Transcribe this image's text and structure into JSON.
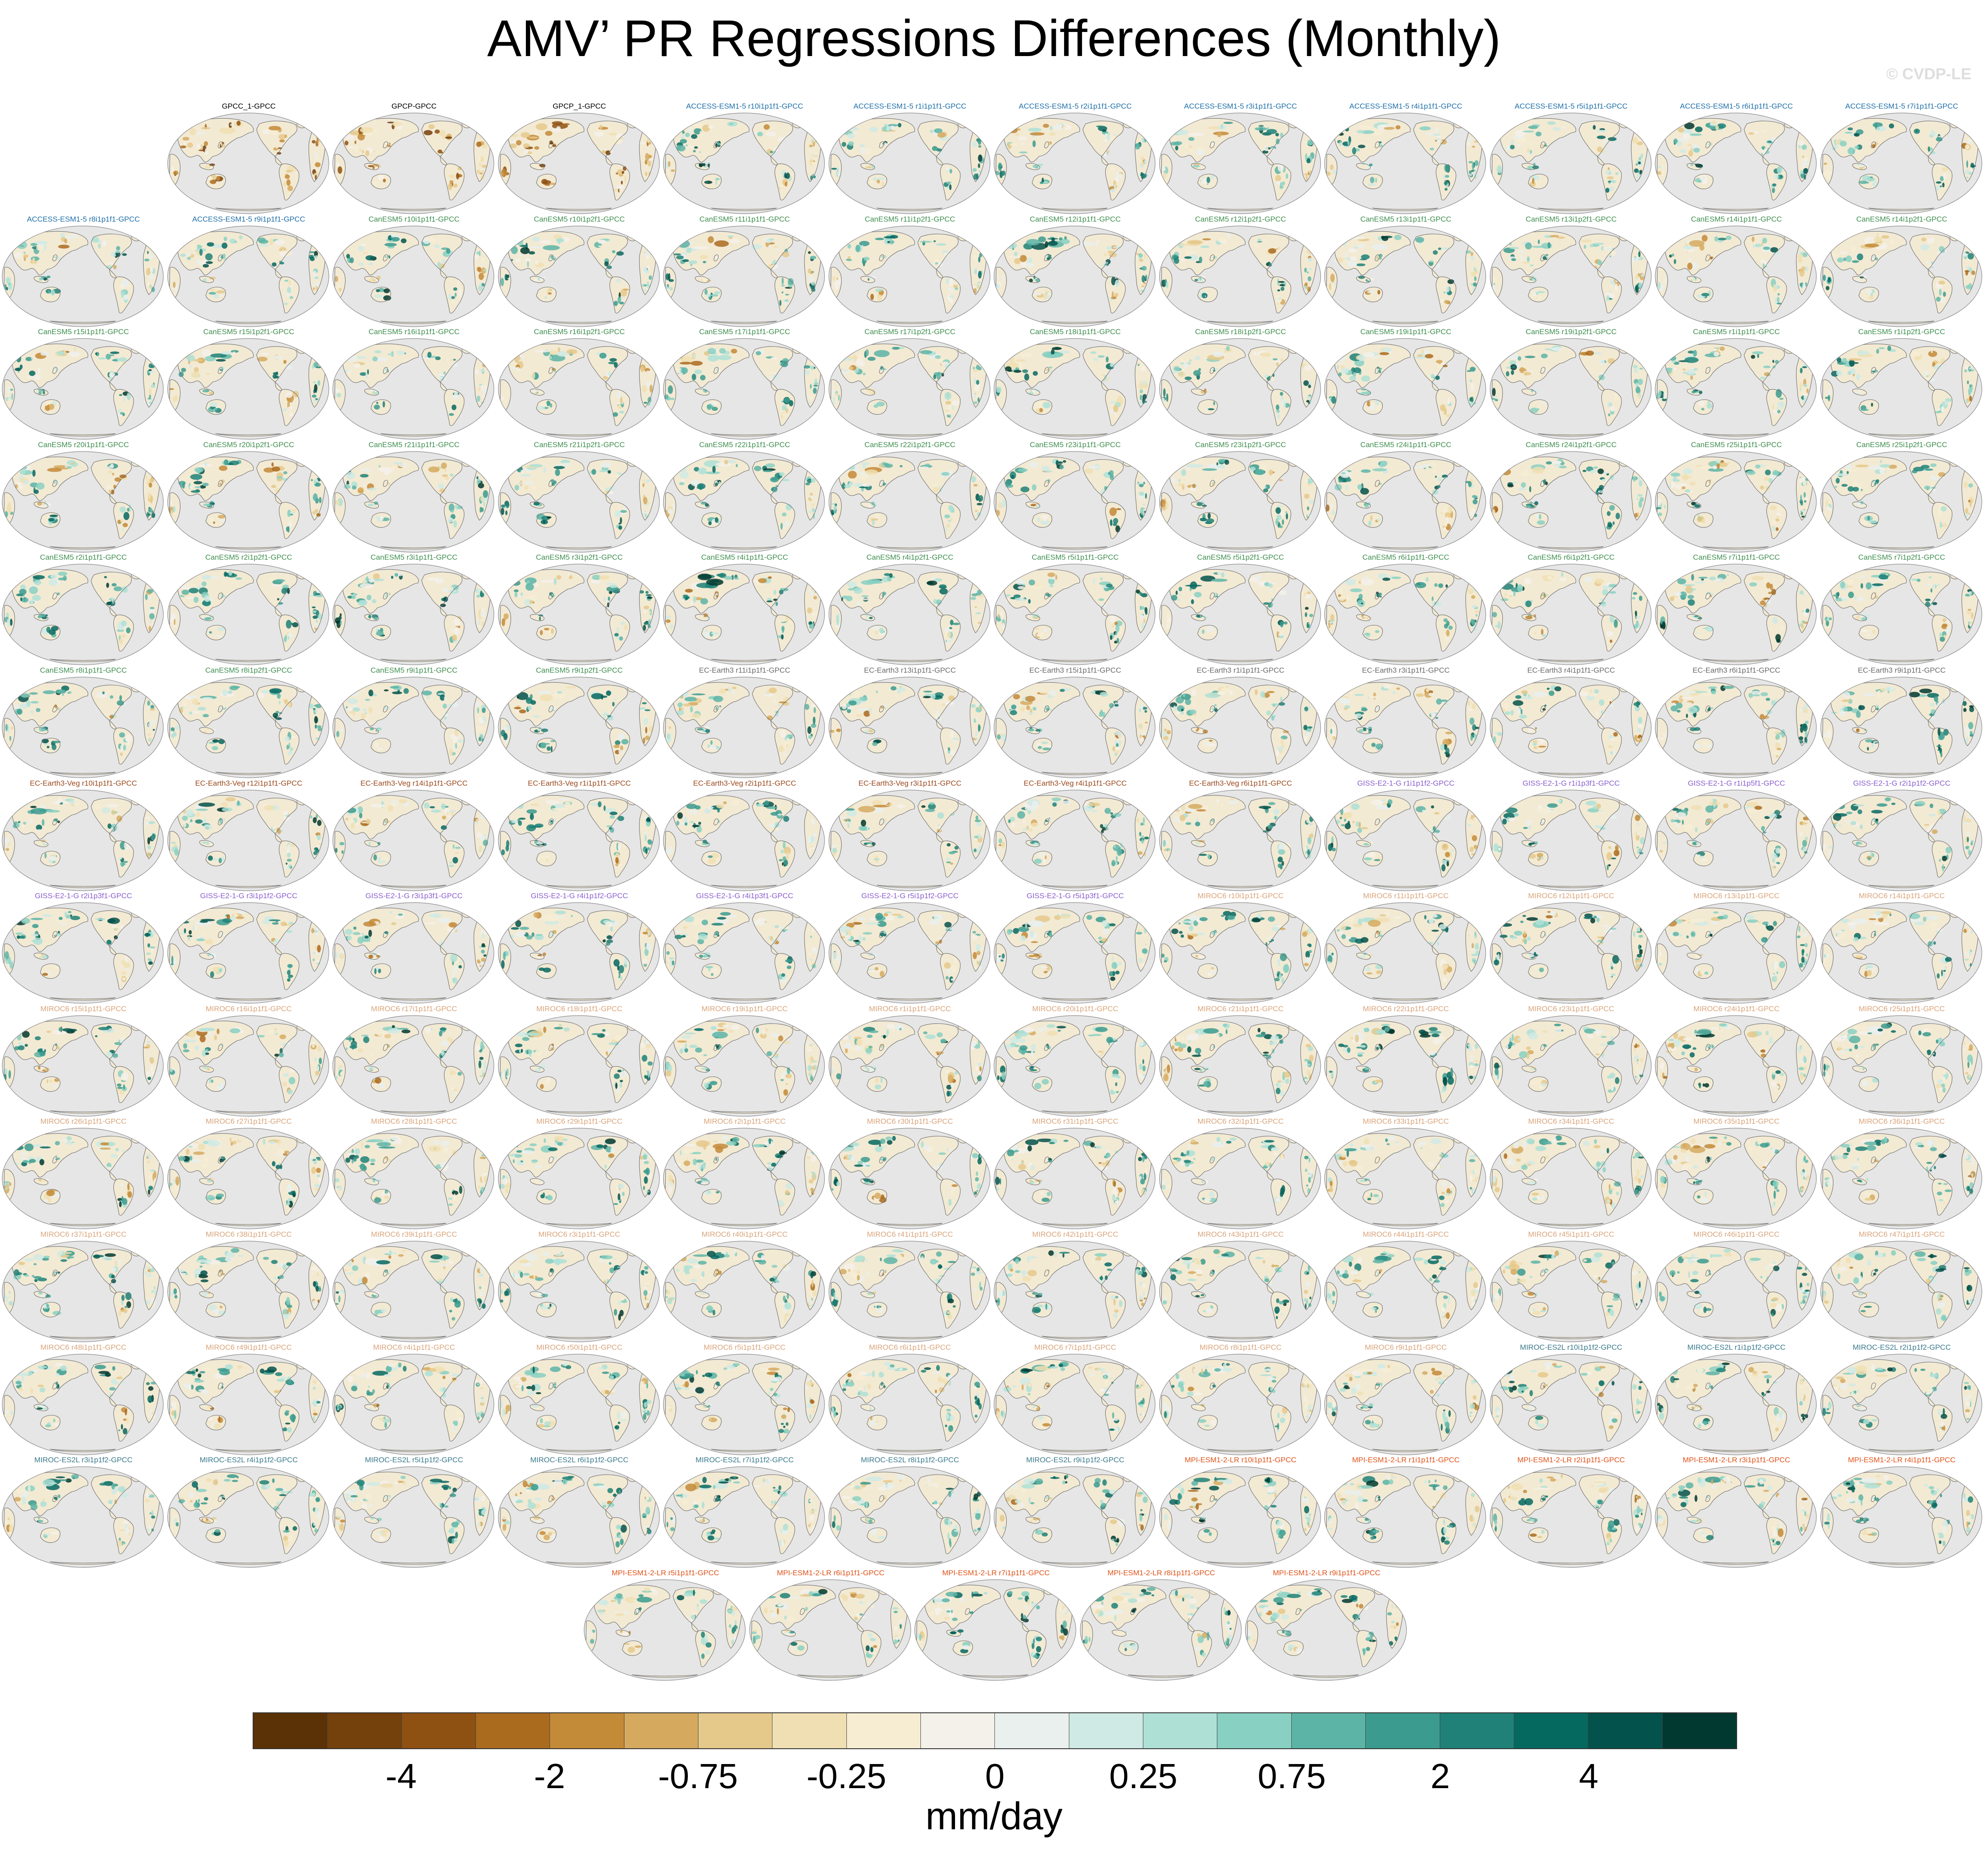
{
  "title": "AMV’ PR Regressions Differences (Monthly)",
  "watermark": "© CVDP-LE",
  "colorbar": {
    "units": "mm/day",
    "tick_labels": [
      "-4",
      "-2",
      "-0.75",
      "-0.25",
      "0",
      "0.25",
      "0.75",
      "2",
      "4"
    ],
    "colors": [
      "#5a3206",
      "#74400c",
      "#8e5112",
      "#aa6b1f",
      "#c38a37",
      "#d5aa5f",
      "#e5c98b",
      "#f0dfb2",
      "#f6edd3",
      "#f4f1ea",
      "#e9f0ee",
      "#cfeae4",
      "#aee0d6",
      "#88d0c2",
      "#5cb4a6",
      "#3a9b8e",
      "#1f8177",
      "#066960",
      "#03524b",
      "#01382f"
    ]
  },
  "panel_rows": [
    [
      "GPCC_1-GPCC",
      "GPCP-GPCC",
      "GPCP_1-GPCC",
      "ACCESS-ESM1-5 r10i1p1f1-GPCC",
      "ACCESS-ESM1-5 r1i1p1f1-GPCC",
      "ACCESS-ESM1-5 r2i1p1f1-GPCC",
      "ACCESS-ESM1-5 r3i1p1f1-GPCC",
      "ACCESS-ESM1-5 r4i1p1f1-GPCC",
      "ACCESS-ESM1-5 r5i1p1f1-GPCC",
      "ACCESS-ESM1-5 r6i1p1f1-GPCC",
      "ACCESS-ESM1-5 r7i1p1f1-GPCC"
    ],
    [
      "ACCESS-ESM1-5 r8i1p1f1-GPCC",
      "ACCESS-ESM1-5 r9i1p1f1-GPCC",
      "CanESM5 r10i1p1f1-GPCC",
      "CanESM5 r10i1p2f1-GPCC",
      "CanESM5 r11i1p1f1-GPCC",
      "CanESM5 r11i1p2f1-GPCC",
      "CanESM5 r12i1p1f1-GPCC",
      "CanESM5 r12i1p2f1-GPCC",
      "CanESM5 r13i1p1f1-GPCC",
      "CanESM5 r13i1p2f1-GPCC",
      "CanESM5 r14i1p1f1-GPCC",
      "CanESM5 r14i1p2f1-GPCC"
    ],
    [
      "CanESM5 r15i1p1f1-GPCC",
      "CanESM5 r15i1p2f1-GPCC",
      "CanESM5 r16i1p1f1-GPCC",
      "CanESM5 r16i1p2f1-GPCC",
      "CanESM5 r17i1p1f1-GPCC",
      "CanESM5 r17i1p2f1-GPCC",
      "CanESM5 r18i1p1f1-GPCC",
      "CanESM5 r18i1p2f1-GPCC",
      "CanESM5 r19i1p1f1-GPCC",
      "CanESM5 r19i1p2f1-GPCC",
      "CanESM5 r1i1p1f1-GPCC",
      "CanESM5 r1i1p2f1-GPCC"
    ],
    [
      "CanESM5 r20i1p1f1-GPCC",
      "CanESM5 r20i1p2f1-GPCC",
      "CanESM5 r21i1p1f1-GPCC",
      "CanESM5 r21i1p2f1-GPCC",
      "CanESM5 r22i1p1f1-GPCC",
      "CanESM5 r22i1p2f1-GPCC",
      "CanESM5 r23i1p1f1-GPCC",
      "CanESM5 r23i1p2f1-GPCC",
      "CanESM5 r24i1p1f1-GPCC",
      "CanESM5 r24i1p2f1-GPCC",
      "CanESM5 r25i1p1f1-GPCC",
      "CanESM5 r25i1p2f1-GPCC"
    ],
    [
      "CanESM5 r2i1p1f1-GPCC",
      "CanESM5 r2i1p2f1-GPCC",
      "CanESM5 r3i1p1f1-GPCC",
      "CanESM5 r3i1p2f1-GPCC",
      "CanESM5 r4i1p1f1-GPCC",
      "CanESM5 r4i1p2f1-GPCC",
      "CanESM5 r5i1p1f1-GPCC",
      "CanESM5 r5i1p2f1-GPCC",
      "CanESM5 r6i1p1f1-GPCC",
      "CanESM5 r6i1p2f1-GPCC",
      "CanESM5 r7i1p1f1-GPCC",
      "CanESM5 r7i1p2f1-GPCC"
    ],
    [
      "CanESM5 r8i1p1f1-GPCC",
      "CanESM5 r8i1p2f1-GPCC",
      "CanESM5 r9i1p1f1-GPCC",
      "CanESM5 r9i1p2f1-GPCC",
      "EC-Earth3 r11i1p1f1-GPCC",
      "EC-Earth3 r13i1p1f1-GPCC",
      "EC-Earth3 r15i1p1f1-GPCC",
      "EC-Earth3 r1i1p1f1-GPCC",
      "EC-Earth3 r3i1p1f1-GPCC",
      "EC-Earth3 r4i1p1f1-GPCC",
      "EC-Earth3 r6i1p1f1-GPCC",
      "EC-Earth3 r9i1p1f1-GPCC"
    ],
    [
      "EC-Earth3-Veg r10i1p1f1-GPCC",
      "EC-Earth3-Veg r12i1p1f1-GPCC",
      "EC-Earth3-Veg r14i1p1f1-GPCC",
      "EC-Earth3-Veg r1i1p1f1-GPCC",
      "EC-Earth3-Veg r2i1p1f1-GPCC",
      "EC-Earth3-Veg r3i1p1f1-GPCC",
      "EC-Earth3-Veg r4i1p1f1-GPCC",
      "EC-Earth3-Veg r6i1p1f1-GPCC",
      "GISS-E2-1-G r1i1p1f2-GPCC",
      "GISS-E2-1-G r1i1p3f1-GPCC",
      "GISS-E2-1-G r1i1p5f1-GPCC",
      "GISS-E2-1-G r2i1p1f2-GPCC"
    ],
    [
      "GISS-E2-1-G r2i1p3f1-GPCC",
      "GISS-E2-1-G r3i1p1f2-GPCC",
      "GISS-E2-1-G r3i1p3f1-GPCC",
      "GISS-E2-1-G r4i1p1f2-GPCC",
      "GISS-E2-1-G r4i1p3f1-GPCC",
      "GISS-E2-1-G r5i1p1f2-GPCC",
      "GISS-E2-1-G r5i1p3f1-GPCC",
      "MIROC6 r10i1p1f1-GPCC",
      "MIROC6 r11i1p1f1-GPCC",
      "MIROC6 r12i1p1f1-GPCC",
      "MIROC6 r13i1p1f1-GPCC",
      "MIROC6 r14i1p1f1-GPCC"
    ],
    [
      "MIROC6 r15i1p1f1-GPCC",
      "MIROC6 r16i1p1f1-GPCC",
      "MIROC6 r17i1p1f1-GPCC",
      "MIROC6 r18i1p1f1-GPCC",
      "MIROC6 r19i1p1f1-GPCC",
      "MIROC6 r1i1p1f1-GPCC",
      "MIROC6 r20i1p1f1-GPCC",
      "MIROC6 r21i1p1f1-GPCC",
      "MIROC6 r22i1p1f1-GPCC",
      "MIROC6 r23i1p1f1-GPCC",
      "MIROC6 r24i1p1f1-GPCC",
      "MIROC6 r25i1p1f1-GPCC"
    ],
    [
      "MIROC6 r26i1p1f1-GPCC",
      "MIROC6 r27i1p1f1-GPCC",
      "MIROC6 r28i1p1f1-GPCC",
      "MIROC6 r29i1p1f1-GPCC",
      "MIROC6 r2i1p1f1-GPCC",
      "MIROC6 r30i1p1f1-GPCC",
      "MIROC6 r31i1p1f1-GPCC",
      "MIROC6 r32i1p1f1-GPCC",
      "MIROC6 r33i1p1f1-GPCC",
      "MIROC6 r34i1p1f1-GPCC",
      "MIROC6 r35i1p1f1-GPCC",
      "MIROC6 r36i1p1f1-GPCC"
    ],
    [
      "MIROC6 r37i1p1f1-GPCC",
      "MIROC6 r38i1p1f1-GPCC",
      "MIROC6 r39i1p1f1-GPCC",
      "MIROC6 r3i1p1f1-GPCC",
      "MIROC6 r40i1p1f1-GPCC",
      "MIROC6 r41i1p1f1-GPCC",
      "MIROC6 r42i1p1f1-GPCC",
      "MIROC6 r43i1p1f1-GPCC",
      "MIROC6 r44i1p1f1-GPCC",
      "MIROC6 r45i1p1f1-GPCC",
      "MIROC6 r46i1p1f1-GPCC",
      "MIROC6 r47i1p1f1-GPCC"
    ],
    [
      "MIROC6 r48i1p1f1-GPCC",
      "MIROC6 r49i1p1f1-GPCC",
      "MIROC6 r4i1p1f1-GPCC",
      "MIROC6 r50i1p1f1-GPCC",
      "MIROC6 r5i1p1f1-GPCC",
      "MIROC6 r6i1p1f1-GPCC",
      "MIROC6 r7i1p1f1-GPCC",
      "MIROC6 r8i1p1f1-GPCC",
      "MIROC6 r9i1p1f1-GPCC",
      "MIROC-ES2L r10i1p1f2-GPCC",
      "MIROC-ES2L r1i1p1f2-GPCC",
      "MIROC-ES2L r2i1p1f2-GPCC"
    ],
    [
      "MIROC-ES2L r3i1p1f2-GPCC",
      "MIROC-ES2L r4i1p1f2-GPCC",
      "MIROC-ES2L r5i1p1f2-GPCC",
      "MIROC-ES2L r6i1p1f2-GPCC",
      "MIROC-ES2L r7i1p1f2-GPCC",
      "MIROC-ES2L r8i1p1f2-GPCC",
      "MIROC-ES2L r9i1p1f2-GPCC",
      "MPI-ESM1-2-LR r10i1p1f1-GPCC",
      "MPI-ESM1-2-LR r1i1p1f1-GPCC",
      "MPI-ESM1-2-LR r2i1p1f1-GPCC",
      "MPI-ESM1-2-LR r3i1p1f1-GPCC",
      "MPI-ESM1-2-LR r4i1p1f1-GPCC"
    ],
    [
      "MPI-ESM1-2-LR r5i1p1f1-GPCC",
      "MPI-ESM1-2-LR r6i1p1f1-GPCC",
      "MPI-ESM1-2-LR r7i1p1f1-GPCC",
      "MPI-ESM1-2-LR r8i1p1f1-GPCC",
      "MPI-ESM1-2-LR r9i1p1f1-GPCC"
    ]
  ],
  "label_colors": {
    "GPCC": "#000000",
    "GPCP": "#000000",
    "ACCESS-ESM1-5": "#1f6fa8",
    "CanESM5": "#3f8f4f",
    "EC-Earth3-Veg": "#9a4a1e",
    "EC-Earth3": "#6b6b6b",
    "GISS-E2-1-G": "#8a5fcf",
    "MIROC-ES2L": "#3a7a8c",
    "MIROC6": "#d9a47a",
    "MPI-ESM1-2-LR": "#e0531a"
  }
}
